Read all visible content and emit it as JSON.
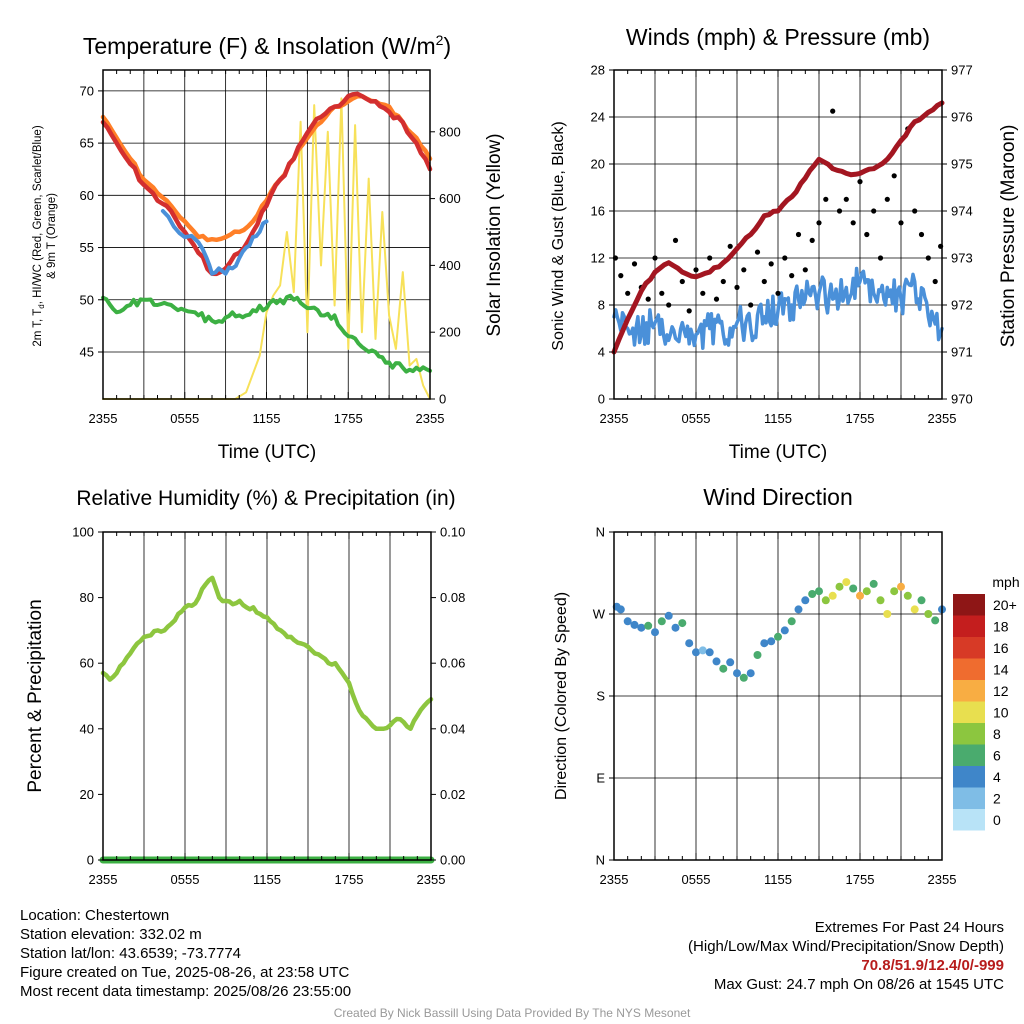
{
  "panels": {
    "temperature": {
      "title": "Temperature (F) & Insolation (W/m",
      "title_sup": "2",
      "title_close": ")",
      "ylabel_left_line1": "2m T, T",
      "ylabel_left_sub": "d",
      "ylabel_left_line1b": ", HI/WC (Red, Green, Scarlet/Blue)",
      "ylabel_left_line2": "& 9m T (Orange)",
      "ylabel_right": "Solar Insolation (Yellow)",
      "xlabel": "Time (UTC)"
    },
    "winds": {
      "title": "Winds (mph) & Pressure (mb)",
      "ylabel_left": "Sonic Wind & Gust (Blue, Black)",
      "ylabel_right": "Station Pressure (Maroon)",
      "xlabel": "Time (UTC)"
    },
    "humidity": {
      "title": "Relative Humidity (%) & Precipitation (in)",
      "ylabel_left": "Percent & Precipitation"
    },
    "direction": {
      "title": "Wind Direction",
      "ylabel_left": "Direction (Colored By Speed)",
      "colorbar_title": "mph"
    }
  },
  "info": {
    "location": "Location: Chestertown",
    "elevation": "Station elevation: 332.02 m",
    "latlon": "Station lat/lon: 43.6539; -73.7774",
    "created": "Figure created on Tue, 2025-08-26, at 23:58 UTC",
    "recent": "Most recent data timestamp: 2025/08/26 23:55:00",
    "extremes_title": "Extremes For Past 24 Hours",
    "extremes_legend": "(High/Low/Max Wind/Precipitation/Snow Depth)",
    "extremes_values": "70.8/51.9/12.4/0/-999",
    "max_gust": "Max Gust: 24.7 mph On 08/26 at 1545 UTC"
  },
  "credit": "Created By Nick Bassill Using Data Provided By The NYS Mesonet",
  "colors": {
    "temperature": "#d32f2f",
    "nine_m_temperature": "#ff7f27",
    "dewpoint": "#3cb043",
    "heat_index_wind_chill": "#4a90d9",
    "solar": "#f7e15a",
    "wind_speed": "#4a90d9",
    "wind_gust": "#000000",
    "pressure": "#a31621",
    "humidity": "#8dc63f",
    "precipitation": "#3cb043"
  },
  "chart_data": [
    {
      "type": "line",
      "panel": "temperature",
      "x_ticks": [
        "2355",
        "0555",
        "1155",
        "1755",
        "2355"
      ],
      "ylim_left": [
        40.5,
        72
      ],
      "yticks_left": [
        45,
        50,
        55,
        60,
        65,
        70
      ],
      "ylim_right": [
        0,
        985
      ],
      "yticks_right": [
        0,
        200,
        400,
        600,
        800
      ],
      "series": [
        {
          "key": "temp",
          "axis": "left",
          "hours": [
            0,
            1,
            2,
            3,
            4,
            5,
            6,
            7,
            8,
            9,
            10,
            11,
            12,
            13,
            14,
            15,
            16,
            17,
            18,
            19,
            20,
            21,
            22,
            23,
            24
          ],
          "values": [
            67,
            65,
            63,
            61,
            59.5,
            58.5,
            56.5,
            54.5,
            52.5,
            53,
            54.5,
            56.5,
            59,
            61.5,
            63.5,
            66,
            67.5,
            68.5,
            69.5,
            69.5,
            69,
            68,
            67,
            65,
            62.5
          ]
        },
        {
          "key": "t9m",
          "axis": "left",
          "hours": [
            0,
            1,
            2,
            3,
            4,
            5,
            6,
            7,
            8,
            9,
            10,
            11,
            12,
            13,
            14,
            15,
            16,
            17,
            18,
            19,
            20,
            21,
            22,
            23,
            24
          ],
          "values": [
            67.5,
            65.5,
            63.5,
            61.5,
            60.2,
            59,
            57.5,
            56,
            55.8,
            56,
            56.5,
            57.5,
            59.5,
            61.5,
            63.5,
            65.5,
            67,
            68.5,
            69,
            69.5,
            69,
            68.5,
            67,
            65.5,
            63.5
          ]
        },
        {
          "key": "dewpoint",
          "axis": "left",
          "hours": [
            0,
            1,
            2,
            3,
            4,
            5,
            6,
            7,
            8,
            9,
            10,
            11,
            12,
            13,
            14,
            15,
            16,
            17,
            18,
            19,
            20,
            21,
            22,
            23,
            24
          ],
          "values": [
            50.2,
            48.8,
            49.5,
            50,
            49.5,
            49.5,
            49,
            48.5,
            48,
            48.3,
            48.5,
            49,
            49.2,
            50,
            50,
            49.2,
            48.5,
            48.5,
            46.5,
            45.5,
            45,
            44,
            43.5,
            43.5,
            43.2
          ]
        },
        {
          "key": "hiwc",
          "axis": "left",
          "hours": [
            4.4,
            5.2,
            6,
            7,
            7.6,
            8,
            8.5,
            9,
            9.5,
            10,
            10.5,
            11,
            11.5,
            12
          ],
          "values": [
            58.5,
            57,
            56,
            55.5,
            54,
            52.5,
            53,
            52.5,
            53,
            54,
            55,
            56,
            56.5,
            57.5
          ]
        },
        {
          "key": "solar",
          "axis": "right",
          "hours": [
            0,
            6,
            9.7,
            10.5,
            11.5,
            12,
            12.5,
            13,
            13.5,
            14,
            14.5,
            15,
            15.5,
            16,
            16.5,
            17,
            17.5,
            18,
            18.5,
            19,
            19.5,
            20,
            20.5,
            21,
            21.5,
            22,
            22.5,
            23,
            23.5,
            24
          ],
          "values": [
            0,
            0,
            0,
            20,
            130,
            260,
            310,
            340,
            500,
            320,
            830,
            200,
            880,
            400,
            800,
            280,
            900,
            150,
            820,
            200,
            660,
            180,
            560,
            250,
            150,
            380,
            100,
            120,
            40,
            0
          ]
        }
      ]
    },
    {
      "type": "line",
      "panel": "winds",
      "x_ticks": [
        "2355",
        "0555",
        "1155",
        "1755",
        "2355"
      ],
      "ylim_left": [
        0,
        28
      ],
      "yticks_left": [
        0,
        4,
        8,
        12,
        16,
        20,
        24,
        28
      ],
      "ylim_right": [
        970,
        977
      ],
      "yticks_right": [
        970,
        971,
        972,
        973,
        974,
        975,
        976,
        977
      ],
      "series": [
        {
          "key": "wind",
          "axis": "left",
          "hours": [
            0,
            1,
            2,
            3,
            4,
            5,
            6,
            7,
            8,
            9,
            10,
            11,
            12,
            13,
            14,
            15,
            16,
            17,
            18,
            19,
            20,
            21,
            22,
            23,
            24
          ],
          "values": [
            7,
            6,
            5.5,
            6.5,
            5,
            6.5,
            5.5,
            6,
            5.5,
            6.5,
            6,
            7,
            7.5,
            8,
            8.5,
            9,
            8.5,
            9.5,
            10,
            9,
            9.5,
            8.5,
            10,
            7,
            6
          ]
        },
        {
          "key": "gust",
          "axis": "left",
          "hours": [
            0.1,
            0.5,
            1,
            1.5,
            2,
            2.5,
            3,
            3.5,
            4,
            4.5,
            5,
            5.5,
            6,
            6.5,
            7,
            7.5,
            8,
            8.5,
            9,
            9.5,
            10,
            10.5,
            11,
            11.5,
            12,
            12.5,
            13,
            13.5,
            14,
            14.5,
            15,
            15.5,
            16,
            16.5,
            17,
            17.5,
            18,
            18.5,
            19,
            19.5,
            20,
            20.5,
            21,
            21.5,
            22,
            22.5,
            23,
            23.5,
            23.9
          ],
          "values": [
            12,
            10.5,
            9,
            11.5,
            9.5,
            8.5,
            12,
            9,
            8,
            13.5,
            10,
            7.5,
            11,
            9,
            12,
            8.5,
            10,
            13,
            9.5,
            11,
            8,
            12.5,
            10,
            11.5,
            9,
            12,
            10.5,
            14,
            11,
            13.5,
            15,
            17,
            24.5,
            16,
            17,
            15,
            18.5,
            14,
            16,
            12,
            17,
            19,
            15,
            23,
            16,
            14,
            12,
            10,
            13
          ]
        },
        {
          "key": "pressure",
          "axis": "right",
          "hours": [
            0,
            1,
            2,
            3,
            4,
            5,
            6,
            7,
            8,
            9,
            10,
            11,
            12,
            13,
            14,
            15,
            16,
            17,
            18,
            19,
            20,
            21,
            22,
            23,
            24
          ],
          "values": [
            971,
            971.7,
            972.3,
            972.7,
            972.9,
            972.7,
            972.6,
            972.7,
            972.9,
            973.2,
            973.5,
            973.9,
            974.0,
            974.3,
            974.7,
            975.1,
            974.9,
            974.8,
            974.8,
            974.9,
            975.1,
            975.5,
            975.9,
            976.1,
            976.3
          ]
        }
      ]
    },
    {
      "type": "line",
      "panel": "humidity",
      "x_ticks": [
        "2355",
        "0555",
        "1155",
        "1755",
        "2355"
      ],
      "ylim_left": [
        0,
        100
      ],
      "yticks_left": [
        0,
        20,
        40,
        60,
        80,
        100
      ],
      "ylim_right": [
        0,
        0.1
      ],
      "yticks_right": [
        "0.00",
        "0.02",
        "0.04",
        "0.06",
        "0.08",
        "0.10"
      ],
      "series": [
        {
          "key": "rh",
          "axis": "left",
          "hours": [
            0,
            0.5,
            1,
            1.5,
            2,
            2.5,
            3,
            3.5,
            4,
            4.5,
            5,
            5.5,
            6,
            6.5,
            7,
            7.5,
            8,
            8.5,
            9,
            9.5,
            10,
            10.5,
            11,
            11.5,
            12,
            12.5,
            13,
            13.5,
            14,
            14.5,
            15,
            15.5,
            16,
            16.5,
            17,
            17.5,
            18,
            18.5,
            19,
            19.5,
            20,
            20.5,
            21,
            21.5,
            22,
            22.5,
            23,
            23.5,
            24
          ],
          "values": [
            57,
            55,
            57,
            60,
            63,
            66,
            68,
            68.5,
            70,
            70,
            72,
            75,
            77,
            77.5,
            80,
            84,
            86,
            80,
            79,
            78,
            79,
            77,
            77,
            75,
            74,
            72,
            70,
            68,
            67,
            66,
            65,
            63,
            62,
            60,
            60,
            57,
            54,
            48,
            44,
            42,
            40,
            40,
            41,
            43,
            42,
            40,
            44,
            47,
            49
          ]
        },
        {
          "key": "precip",
          "axis": "right",
          "hours": [
            0,
            24
          ],
          "values": [
            0,
            0
          ]
        }
      ]
    },
    {
      "type": "scatter",
      "panel": "direction",
      "x_ticks": [
        "2355",
        "0555",
        "1155",
        "1755",
        "2355"
      ],
      "yticks": [
        "N",
        "E",
        "S",
        "W",
        "N"
      ],
      "ylim": [
        0,
        360
      ],
      "hours": [
        0.2,
        0.5,
        1,
        1.5,
        2,
        2.5,
        3,
        3.5,
        4,
        4.5,
        5,
        5.5,
        6,
        6.5,
        7,
        7.5,
        8,
        8.5,
        9,
        9.5,
        10,
        10.5,
        11,
        11.5,
        12,
        12.5,
        13,
        13.5,
        14,
        14.5,
        15,
        15.5,
        16,
        16.5,
        17,
        17.5,
        18,
        18.5,
        19,
        19.5,
        20,
        20.5,
        21,
        21.5,
        22,
        22.5,
        23,
        23.5,
        24
      ],
      "direction_deg": [
        278,
        275,
        262,
        258,
        255,
        257,
        250,
        262,
        268,
        255,
        260,
        238,
        228,
        230,
        228,
        218,
        210,
        217,
        205,
        200,
        205,
        225,
        238,
        240,
        245,
        252,
        262,
        275,
        285,
        292,
        295,
        285,
        290,
        300,
        305,
        298,
        290,
        295,
        303,
        285,
        270,
        295,
        300,
        290,
        275,
        285,
        270,
        263,
        275
      ],
      "speed_mph": [
        5,
        4,
        4,
        5,
        4,
        6,
        5,
        6,
        4,
        5,
        6,
        4,
        5,
        3,
        4,
        5,
        6,
        4,
        5,
        6,
        5,
        6,
        4,
        5,
        6,
        5,
        7,
        4,
        5,
        6,
        6,
        8,
        10,
        8,
        10,
        6,
        12,
        9,
        7,
        8,
        10,
        8,
        12,
        9,
        11,
        7,
        8,
        6,
        5
      ],
      "colorbar": {
        "labels": [
          "0",
          "2",
          "4",
          "6",
          "8",
          "10",
          "12",
          "14",
          "16",
          "18",
          "20+"
        ],
        "colors": [
          "#b8e3f7",
          "#7fbde6",
          "#3f86c9",
          "#4aab6e",
          "#8cc63f",
          "#e8df4f",
          "#f8ad43",
          "#ef6c2f",
          "#d73a26",
          "#c41e1e",
          "#8e1616"
        ]
      }
    }
  ]
}
